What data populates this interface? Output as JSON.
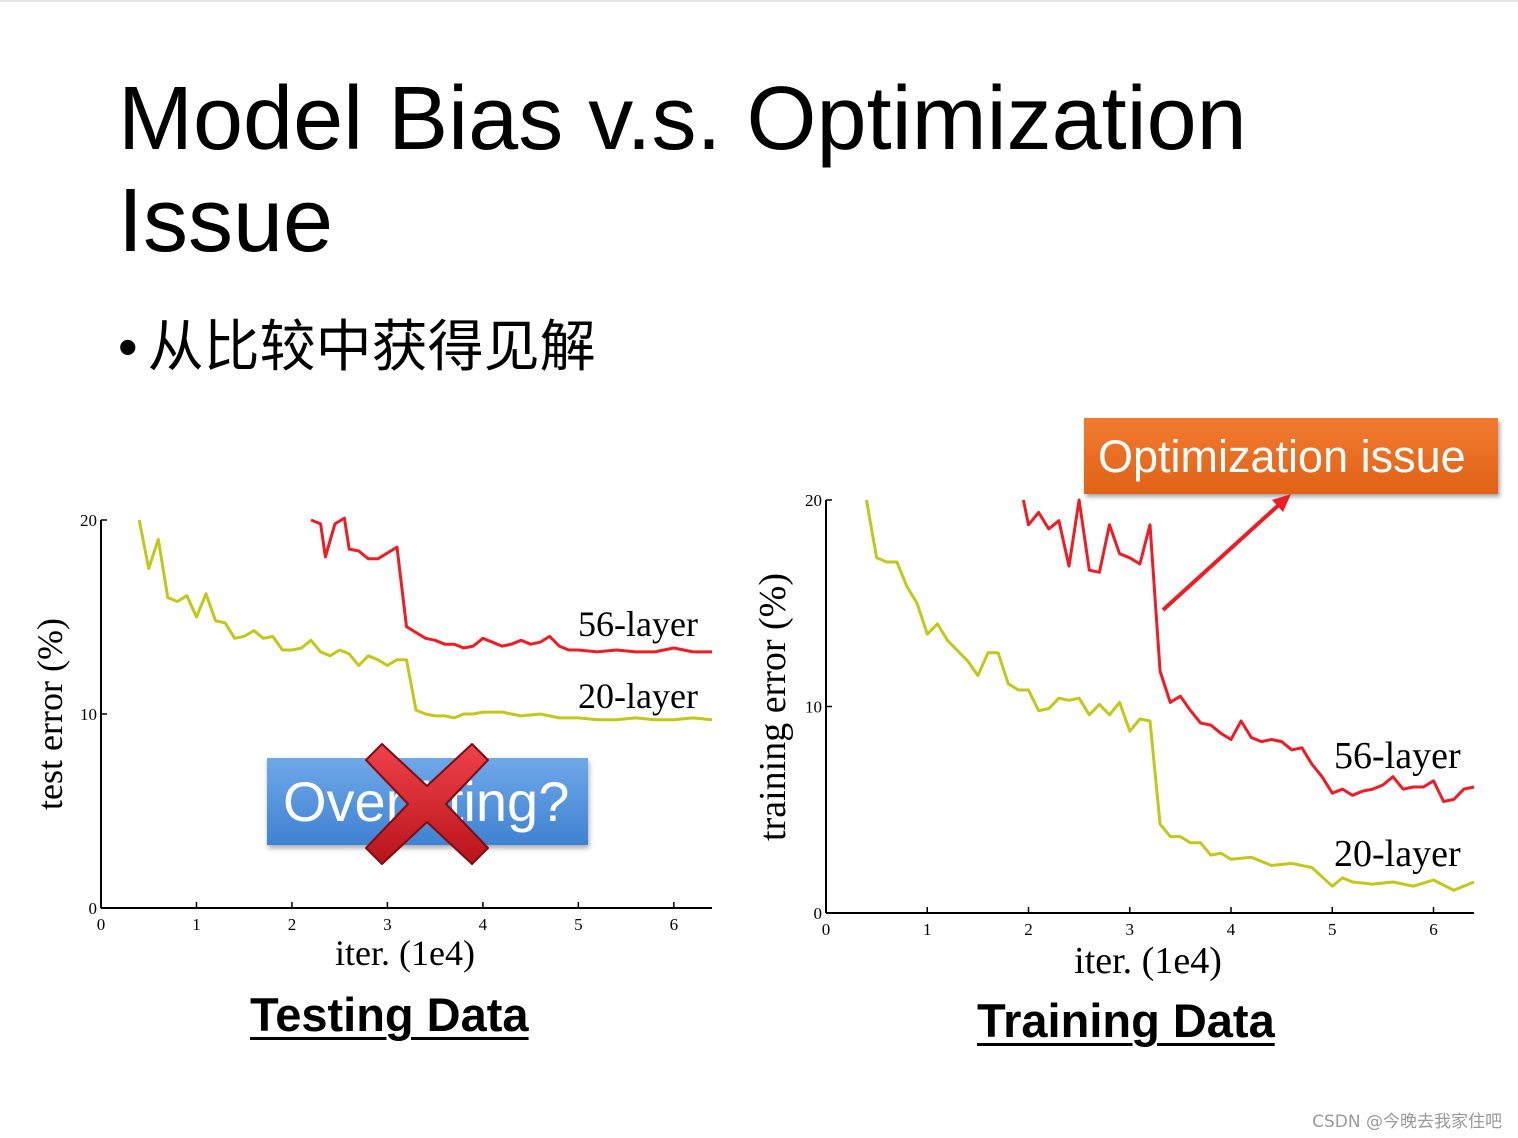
{
  "slide": {
    "title": "Model Bias v.s. Optimization Issue",
    "bullet": "从比较中获得见解",
    "watermark": "CSDN @今晚去我家住吧"
  },
  "callouts": {
    "optimization": "Optimization issue",
    "overfitting": "Overfitting?"
  },
  "icons": {
    "cross": "red-x-icon",
    "arrow": "red-arrow-icon"
  },
  "colors": {
    "deep": "#ee1c25",
    "shallow": "#c2c71a",
    "callout_orange": "#ea6c22",
    "callout_blue": "#4f8fdc"
  },
  "chart_data": [
    {
      "type": "line",
      "caption": "Testing Data",
      "xlabel": "iter. (1e4)",
      "ylabel": "test error (%)",
      "xlim": [
        0,
        6.4
      ],
      "ylim": [
        0,
        20
      ],
      "xticks": [
        "0",
        "1",
        "2",
        "3",
        "4",
        "5",
        "6"
      ],
      "yticks": [
        "0",
        "10",
        "20"
      ],
      "series": [
        {
          "name": "56-layer",
          "x": [
            2.2,
            2.3,
            2.35,
            2.45,
            2.55,
            2.6,
            2.7,
            2.8,
            2.9,
            3.0,
            3.1,
            3.2,
            3.3,
            3.4,
            3.5,
            3.6,
            3.7,
            3.8,
            3.9,
            4.0,
            4.1,
            4.2,
            4.3,
            4.4,
            4.5,
            4.6,
            4.7,
            4.8,
            4.9,
            5.0,
            5.2,
            5.4,
            5.6,
            5.8,
            6.0,
            6.2,
            6.4
          ],
          "values": [
            20.0,
            19.8,
            18.1,
            19.8,
            20.1,
            18.5,
            18.4,
            18.0,
            18.0,
            18.3,
            18.6,
            14.5,
            14.2,
            13.9,
            13.8,
            13.6,
            13.6,
            13.4,
            13.5,
            13.9,
            13.7,
            13.5,
            13.6,
            13.8,
            13.6,
            13.7,
            14.0,
            13.5,
            13.3,
            13.3,
            13.2,
            13.3,
            13.2,
            13.2,
            13.4,
            13.2,
            13.2
          ]
        },
        {
          "name": "20-layer",
          "x": [
            0.4,
            0.5,
            0.6,
            0.7,
            0.8,
            0.9,
            1.0,
            1.1,
            1.2,
            1.3,
            1.4,
            1.5,
            1.6,
            1.7,
            1.8,
            1.9,
            2.0,
            2.1,
            2.2,
            2.3,
            2.4,
            2.5,
            2.6,
            2.7,
            2.8,
            2.9,
            3.0,
            3.1,
            3.2,
            3.3,
            3.4,
            3.5,
            3.6,
            3.7,
            3.8,
            3.9,
            4.0,
            4.2,
            4.4,
            4.6,
            4.8,
            5.0,
            5.2,
            5.4,
            5.6,
            5.8,
            6.0,
            6.2,
            6.4
          ],
          "values": [
            20.0,
            17.5,
            19.0,
            16.0,
            15.8,
            16.1,
            15.0,
            16.2,
            14.8,
            14.7,
            13.9,
            14.0,
            14.3,
            13.9,
            14.0,
            13.3,
            13.3,
            13.4,
            13.8,
            13.2,
            13.0,
            13.3,
            13.1,
            12.5,
            13.0,
            12.8,
            12.5,
            12.8,
            12.8,
            10.2,
            10.0,
            9.9,
            9.9,
            9.8,
            10.0,
            10.0,
            10.1,
            10.1,
            9.9,
            10.0,
            9.8,
            9.8,
            9.7,
            9.7,
            9.8,
            9.7,
            9.7,
            9.8,
            9.7
          ]
        }
      ]
    },
    {
      "type": "line",
      "caption": "Training Data",
      "xlabel": "iter. (1e4)",
      "ylabel": "training error (%)",
      "xlim": [
        0,
        6.4
      ],
      "ylim": [
        0,
        20
      ],
      "xticks": [
        "0",
        "1",
        "2",
        "3",
        "4",
        "5",
        "6"
      ],
      "yticks": [
        "0",
        "10",
        "20"
      ],
      "series": [
        {
          "name": "56-layer",
          "x": [
            1.95,
            2.0,
            2.1,
            2.2,
            2.3,
            2.4,
            2.5,
            2.6,
            2.7,
            2.8,
            2.9,
            3.0,
            3.1,
            3.2,
            3.3,
            3.4,
            3.5,
            3.6,
            3.7,
            3.8,
            3.9,
            4.0,
            4.1,
            4.2,
            4.3,
            4.4,
            4.5,
            4.6,
            4.7,
            4.8,
            4.9,
            5.0,
            5.1,
            5.2,
            5.3,
            5.4,
            5.5,
            5.6,
            5.7,
            5.8,
            5.9,
            6.0,
            6.1,
            6.2,
            6.3,
            6.4
          ],
          "values": [
            20.0,
            18.8,
            19.4,
            18.6,
            19.0,
            16.8,
            20.0,
            16.6,
            16.5,
            18.8,
            17.4,
            17.2,
            16.9,
            18.8,
            11.7,
            10.2,
            10.5,
            9.8,
            9.2,
            9.1,
            8.7,
            8.4,
            9.3,
            8.5,
            8.3,
            8.4,
            8.3,
            7.9,
            8.0,
            7.2,
            6.6,
            5.8,
            6.0,
            5.7,
            5.9,
            6.0,
            6.2,
            6.6,
            6.0,
            6.1,
            6.1,
            6.4,
            5.4,
            5.5,
            6.0,
            6.1
          ]
        },
        {
          "name": "20-layer",
          "x": [
            0.4,
            0.5,
            0.6,
            0.7,
            0.8,
            0.9,
            1.0,
            1.1,
            1.2,
            1.3,
            1.4,
            1.5,
            1.6,
            1.7,
            1.8,
            1.9,
            2.0,
            2.1,
            2.2,
            2.3,
            2.4,
            2.5,
            2.6,
            2.7,
            2.8,
            2.9,
            3.0,
            3.1,
            3.2,
            3.3,
            3.4,
            3.5,
            3.6,
            3.7,
            3.8,
            3.9,
            4.0,
            4.2,
            4.4,
            4.6,
            4.8,
            5.0,
            5.1,
            5.2,
            5.4,
            5.6,
            5.8,
            6.0,
            6.2,
            6.4
          ],
          "values": [
            20.0,
            17.2,
            17.0,
            17.0,
            15.8,
            15.0,
            13.5,
            14.0,
            13.2,
            12.7,
            12.2,
            11.5,
            12.6,
            12.6,
            11.1,
            10.8,
            10.8,
            9.8,
            9.9,
            10.4,
            10.3,
            10.4,
            9.6,
            10.1,
            9.6,
            10.2,
            8.8,
            9.4,
            9.3,
            4.3,
            3.7,
            3.7,
            3.4,
            3.4,
            2.8,
            2.9,
            2.6,
            2.7,
            2.3,
            2.4,
            2.2,
            1.3,
            1.7,
            1.5,
            1.4,
            1.5,
            1.3,
            1.6,
            1.1,
            1.5
          ]
        }
      ]
    }
  ]
}
